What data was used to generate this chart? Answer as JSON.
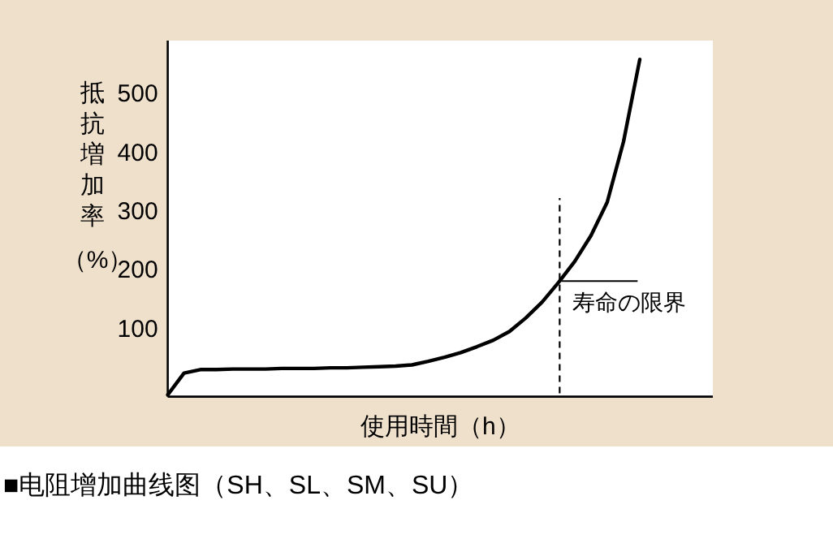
{
  "chart_data": {
    "type": "line",
    "xlabel": "使用時間（h）",
    "ylabel": "抵抗増加率（%）",
    "title": "■电阻增加曲线图（SH、SL、SM、SU）",
    "categories": [
      null,
      null,
      null,
      null,
      null,
      null,
      null,
      null,
      null,
      null,
      null,
      null,
      null,
      null,
      null,
      null,
      null,
      null,
      null,
      null,
      null,
      null,
      null,
      null,
      null,
      null,
      null,
      null,
      null,
      null
    ],
    "ylim": [
      -16,
      590
    ],
    "yticks": [
      100,
      200,
      300,
      400,
      500
    ],
    "tick_labels": "y",
    "grid": false,
    "series": [
      {
        "color": "#000000",
        "values": [
          -13,
          24,
          30,
          30,
          31,
          31,
          31,
          32,
          32,
          32,
          33,
          33,
          34,
          35,
          36,
          38,
          44,
          51,
          59,
          69,
          80,
          95,
          118,
          145,
          178,
          214,
          258,
          315,
          418,
          558
        ]
      }
    ],
    "annotations": [
      "寿命の限界"
    ]
  }
}
